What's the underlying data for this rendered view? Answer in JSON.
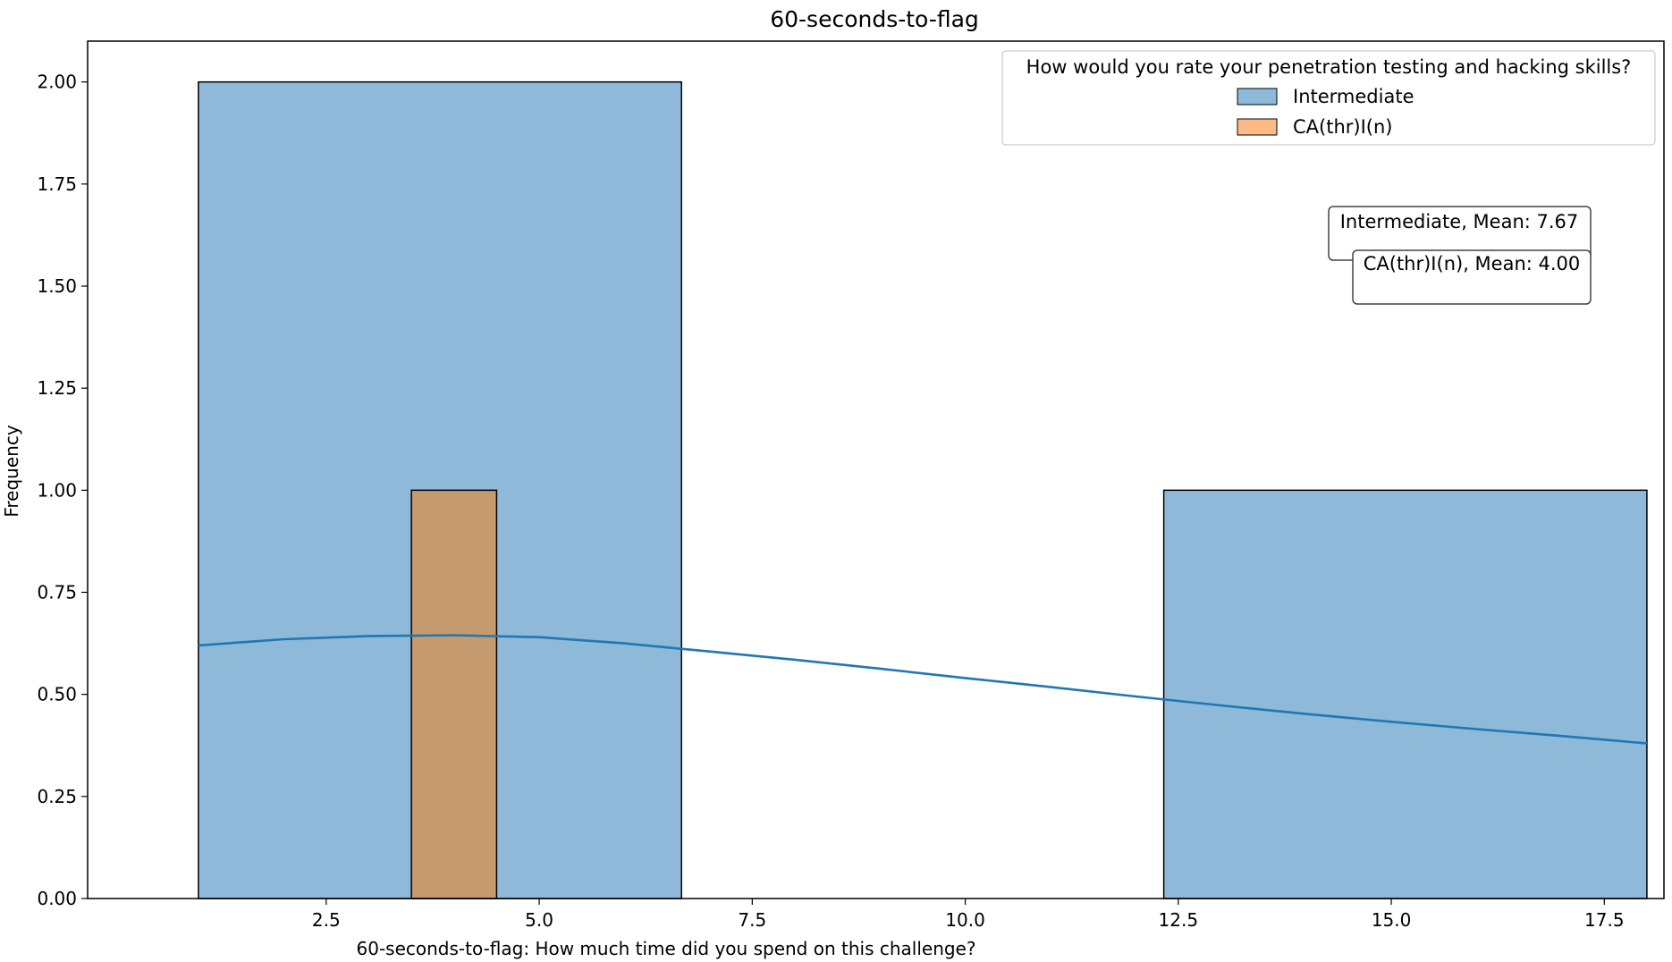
{
  "chart_data": {
    "type": "bar",
    "title": "60-seconds-to-flag",
    "xlabel": "60-seconds-to-flag: How much time did you spend on this challenge?",
    "ylabel": "Frequency",
    "xlim": [
      -0.3,
      18.2
    ],
    "ylim": [
      0,
      2.1
    ],
    "x_ticks": [
      2.5,
      5.0,
      7.5,
      10.0,
      12.5,
      15.0,
      17.5
    ],
    "x_tick_labels": [
      "2.5",
      "5.0",
      "7.5",
      "10.0",
      "12.5",
      "15.0",
      "17.5"
    ],
    "y_ticks": [
      0,
      0.25,
      0.5,
      0.75,
      1.0,
      1.25,
      1.5,
      1.75,
      2.0
    ],
    "y_tick_labels": [
      "0.00",
      "0.25",
      "0.50",
      "0.75",
      "1.00",
      "1.25",
      "1.50",
      "1.75",
      "2.00"
    ],
    "grid": false,
    "legend": {
      "title": "How would you rate your penetration testing and hacking skills?",
      "placement": "top-right",
      "entries": [
        "Intermediate",
        "CA(thr)I(n)"
      ]
    },
    "series": [
      {
        "name": "Intermediate",
        "color": "#1f77b4",
        "fill": "#8eb9d9",
        "bins": [
          {
            "x0": 1.0,
            "x1": 6.67,
            "count": 2
          },
          {
            "x0": 6.67,
            "x1": 12.33,
            "count": 0
          },
          {
            "x0": 12.33,
            "x1": 18.0,
            "count": 1
          }
        ],
        "kde": {
          "x": [
            1.0,
            2.0,
            3.0,
            4.0,
            5.0,
            6.0,
            7.0,
            8.0,
            9.0,
            10.0,
            11.0,
            12.0,
            13.0,
            14.0,
            15.0,
            16.0,
            17.0,
            18.0
          ],
          "y": [
            0.62,
            0.635,
            0.643,
            0.645,
            0.64,
            0.625,
            0.605,
            0.585,
            0.563,
            0.54,
            0.518,
            0.495,
            0.473,
            0.452,
            0.433,
            0.415,
            0.398,
            0.38
          ]
        }
      },
      {
        "name": "CA(thr)I(n)",
        "color": "#ff7f0e",
        "fill": "#c49a6e",
        "bins": [
          {
            "x0": 3.5,
            "x1": 4.5,
            "count": 1
          }
        ]
      }
    ],
    "annotations": [
      {
        "text": "Intermediate, Mean: 7.67"
      },
      {
        "text": "CA(thr)I(n), Mean: 4.00"
      }
    ]
  }
}
